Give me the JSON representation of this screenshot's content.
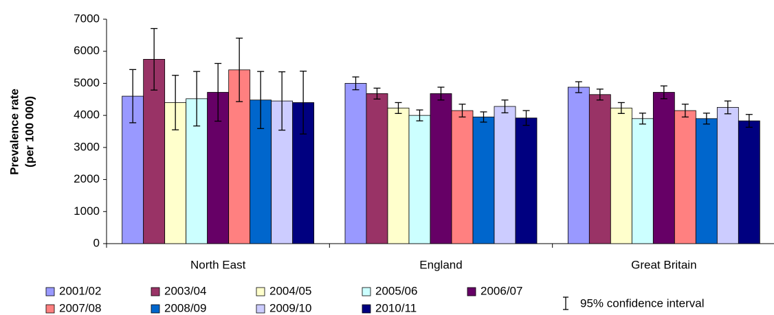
{
  "chart_data": {
    "type": "bar",
    "y_label": [
      "Prevalence rate",
      "(per 100 000)"
    ],
    "categories": [
      "North East",
      "England",
      "Great Britain"
    ],
    "ylim": [
      0,
      7000
    ],
    "yticks": [
      0,
      1000,
      2000,
      3000,
      4000,
      5000,
      6000,
      7000
    ],
    "error_bar_note": "95% confidence interval",
    "series": [
      {
        "name": "2001/02",
        "color": "#9999ff",
        "values": [
          4600,
          5000,
          4880
        ],
        "errors": [
          830,
          200,
          170
        ]
      },
      {
        "name": "2003/04",
        "color": "#993366",
        "values": [
          5750,
          4680,
          4650
        ],
        "errors": [
          960,
          170,
          170
        ]
      },
      {
        "name": "2004/05",
        "color": "#ffffcc",
        "values": [
          4400,
          4230,
          4230
        ],
        "errors": [
          850,
          170,
          170
        ]
      },
      {
        "name": "2005/06",
        "color": "#ccffff",
        "values": [
          4520,
          4000,
          3900
        ],
        "errors": [
          850,
          170,
          170
        ]
      },
      {
        "name": "2006/07",
        "color": "#660066",
        "values": [
          4720,
          4680,
          4720
        ],
        "errors": [
          900,
          200,
          200
        ]
      },
      {
        "name": "2007/08",
        "color": "#ff8080",
        "values": [
          5420,
          4150,
          4150
        ],
        "errors": [
          990,
          200,
          200
        ]
      },
      {
        "name": "2008/09",
        "color": "#0066cc",
        "values": [
          4480,
          3950,
          3900
        ],
        "errors": [
          890,
          160,
          170
        ]
      },
      {
        "name": "2009/10",
        "color": "#ccccff",
        "values": [
          4450,
          4280,
          4250
        ],
        "errors": [
          910,
          200,
          200
        ]
      },
      {
        "name": "2010/11",
        "color": "#000080",
        "values": [
          4400,
          3920,
          3830
        ],
        "errors": [
          980,
          230,
          200
        ]
      }
    ]
  }
}
